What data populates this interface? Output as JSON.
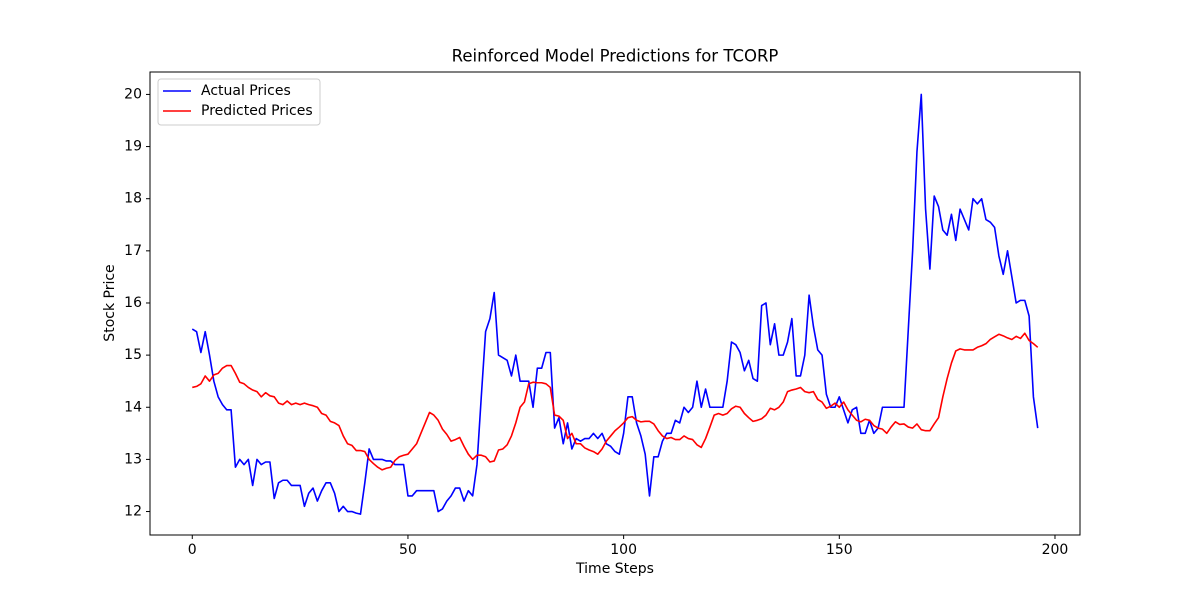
{
  "chart_data": {
    "type": "line",
    "title": "Reinforced Model Predictions for TCORP",
    "xlabel": "Time Steps",
    "ylabel": "Stock Price",
    "legend": "upper left",
    "xlim": [
      -9.8,
      205.8
    ],
    "ylim": [
      11.55,
      20.43
    ],
    "xticks": [
      0,
      50,
      100,
      150,
      200
    ],
    "yticks": [
      12,
      13,
      14,
      15,
      16,
      17,
      18,
      19,
      20
    ],
    "x": [
      0,
      1,
      2,
      3,
      4,
      5,
      6,
      7,
      8,
      9,
      10,
      11,
      12,
      13,
      14,
      15,
      16,
      17,
      18,
      19,
      20,
      21,
      22,
      23,
      24,
      25,
      26,
      27,
      28,
      29,
      30,
      31,
      32,
      33,
      34,
      35,
      36,
      37,
      38,
      39,
      40,
      41,
      42,
      43,
      44,
      45,
      46,
      47,
      48,
      49,
      50,
      51,
      52,
      53,
      54,
      55,
      56,
      57,
      58,
      59,
      60,
      61,
      62,
      63,
      64,
      65,
      66,
      67,
      68,
      69,
      70,
      71,
      72,
      73,
      74,
      75,
      76,
      77,
      78,
      79,
      80,
      81,
      82,
      83,
      84,
      85,
      86,
      87,
      88,
      89,
      90,
      91,
      92,
      93,
      94,
      95,
      96,
      97,
      98,
      99,
      100,
      101,
      102,
      103,
      104,
      105,
      106,
      107,
      108,
      109,
      110,
      111,
      112,
      113,
      114,
      115,
      116,
      117,
      118,
      119,
      120,
      121,
      122,
      123,
      124,
      125,
      126,
      127,
      128,
      129,
      130,
      131,
      132,
      133,
      134,
      135,
      136,
      137,
      138,
      139,
      140,
      141,
      142,
      143,
      144,
      145,
      146,
      147,
      148,
      149,
      150,
      151,
      152,
      153,
      154,
      155,
      156,
      157,
      158,
      159,
      160,
      161,
      162,
      163,
      164,
      165,
      166,
      167,
      168,
      169,
      170,
      171,
      172,
      173,
      174,
      175,
      176,
      177,
      178,
      179,
      180,
      181,
      182,
      183,
      184,
      185,
      186,
      187,
      188,
      189,
      190,
      191,
      192,
      193,
      194,
      195,
      196
    ],
    "series": [
      {
        "name": "Actual Prices",
        "color": "#0000ff",
        "values": [
          15.5,
          15.45,
          15.05,
          15.45,
          15.0,
          14.5,
          14.2,
          14.05,
          13.95,
          13.95,
          12.85,
          13.0,
          12.9,
          13.0,
          12.5,
          13.0,
          12.9,
          12.95,
          12.95,
          12.25,
          12.55,
          12.6,
          12.6,
          12.5,
          12.5,
          12.5,
          12.1,
          12.35,
          12.45,
          12.2,
          12.4,
          12.55,
          12.55,
          12.35,
          12.0,
          12.1,
          12.0,
          12.0,
          11.97,
          11.95,
          12.55,
          13.2,
          13.0,
          13.0,
          13.0,
          12.97,
          12.97,
          12.9,
          12.9,
          12.9,
          12.3,
          12.3,
          12.4,
          12.4,
          12.4,
          12.4,
          12.4,
          12.0,
          12.05,
          12.2,
          12.3,
          12.45,
          12.45,
          12.2,
          12.4,
          12.3,
          12.9,
          14.2,
          15.45,
          15.7,
          16.2,
          15.0,
          14.95,
          14.9,
          14.6,
          15.0,
          14.5,
          14.5,
          14.5,
          14.0,
          14.75,
          14.75,
          15.05,
          15.05,
          13.6,
          13.8,
          13.3,
          13.7,
          13.2,
          13.4,
          13.35,
          13.4,
          13.4,
          13.5,
          13.4,
          13.5,
          13.3,
          13.25,
          13.15,
          13.1,
          13.5,
          14.2,
          14.2,
          13.7,
          13.45,
          13.1,
          12.3,
          13.05,
          13.05,
          13.35,
          13.5,
          13.5,
          13.75,
          13.7,
          14.0,
          13.9,
          14.0,
          14.5,
          14.0,
          14.35,
          14.0,
          14.0,
          14.0,
          14.0,
          14.5,
          15.25,
          15.2,
          15.05,
          14.7,
          14.9,
          14.55,
          14.5,
          15.95,
          16.0,
          15.2,
          15.6,
          15.0,
          15.0,
          15.25,
          15.7,
          14.6,
          14.6,
          15.0,
          16.15,
          15.55,
          15.1,
          15.0,
          14.25,
          14.0,
          14.0,
          14.2,
          13.95,
          13.7,
          13.95,
          14.0,
          13.5,
          13.5,
          13.75,
          13.5,
          13.6,
          14.0,
          14.0,
          14.0,
          14.0,
          14.0,
          14.0,
          15.5,
          17.0,
          18.9,
          20.0,
          17.8,
          16.65,
          18.05,
          17.85,
          17.4,
          17.3,
          17.7,
          17.2,
          17.8,
          17.6,
          17.4,
          18.0,
          17.9,
          18.0,
          17.6,
          17.55,
          17.45,
          16.9,
          16.55,
          17.0,
          16.5,
          16.0,
          16.05,
          16.05,
          15.75,
          14.2,
          13.6
        ]
      },
      {
        "name": "Predicted Prices",
        "color": "#ff0000",
        "values": [
          14.38,
          14.4,
          14.45,
          14.6,
          14.5,
          14.62,
          14.65,
          14.75,
          14.8,
          14.8,
          14.65,
          14.48,
          14.45,
          14.38,
          14.33,
          14.3,
          14.2,
          14.28,
          14.22,
          14.2,
          14.08,
          14.05,
          14.12,
          14.05,
          14.08,
          14.05,
          14.08,
          14.05,
          14.03,
          14.0,
          13.88,
          13.85,
          13.73,
          13.7,
          13.65,
          13.45,
          13.3,
          13.27,
          13.17,
          13.17,
          13.15,
          13.0,
          12.92,
          12.85,
          12.8,
          12.83,
          12.85,
          12.98,
          13.05,
          13.08,
          13.1,
          13.2,
          13.3,
          13.5,
          13.7,
          13.9,
          13.85,
          13.75,
          13.58,
          13.48,
          13.35,
          13.38,
          13.42,
          13.25,
          13.1,
          13.0,
          13.08,
          13.08,
          13.05,
          12.95,
          12.97,
          13.18,
          13.2,
          13.28,
          13.45,
          13.7,
          14.0,
          14.1,
          14.45,
          14.48,
          14.47,
          14.47,
          14.45,
          14.38,
          13.85,
          13.83,
          13.75,
          13.4,
          13.5,
          13.3,
          13.3,
          13.22,
          13.18,
          13.15,
          13.1,
          13.2,
          13.35,
          13.45,
          13.55,
          13.62,
          13.7,
          13.8,
          13.82,
          13.75,
          13.72,
          13.73,
          13.73,
          13.68,
          13.55,
          13.45,
          13.4,
          13.42,
          13.38,
          13.38,
          13.45,
          13.4,
          13.38,
          13.28,
          13.23,
          13.4,
          13.62,
          13.85,
          13.88,
          13.85,
          13.88,
          13.97,
          14.02,
          14.0,
          13.88,
          13.8,
          13.73,
          13.75,
          13.78,
          13.85,
          13.98,
          13.95,
          14.0,
          14.1,
          14.3,
          14.33,
          14.35,
          14.38,
          14.3,
          14.28,
          14.3,
          14.15,
          14.1,
          13.98,
          14.02,
          14.08,
          14.0,
          14.1,
          13.95,
          13.85,
          13.75,
          13.72,
          13.77,
          13.75,
          13.65,
          13.6,
          13.58,
          13.5,
          13.62,
          13.72,
          13.67,
          13.68,
          13.62,
          13.6,
          13.68,
          13.57,
          13.55,
          13.55,
          13.68,
          13.8,
          14.2,
          14.55,
          14.85,
          15.08,
          15.12,
          15.1,
          15.1,
          15.1,
          15.15,
          15.18,
          15.22,
          15.3,
          15.35,
          15.4,
          15.37,
          15.33,
          15.3,
          15.36,
          15.32,
          15.42,
          15.28,
          15.22,
          15.15
        ]
      }
    ]
  }
}
